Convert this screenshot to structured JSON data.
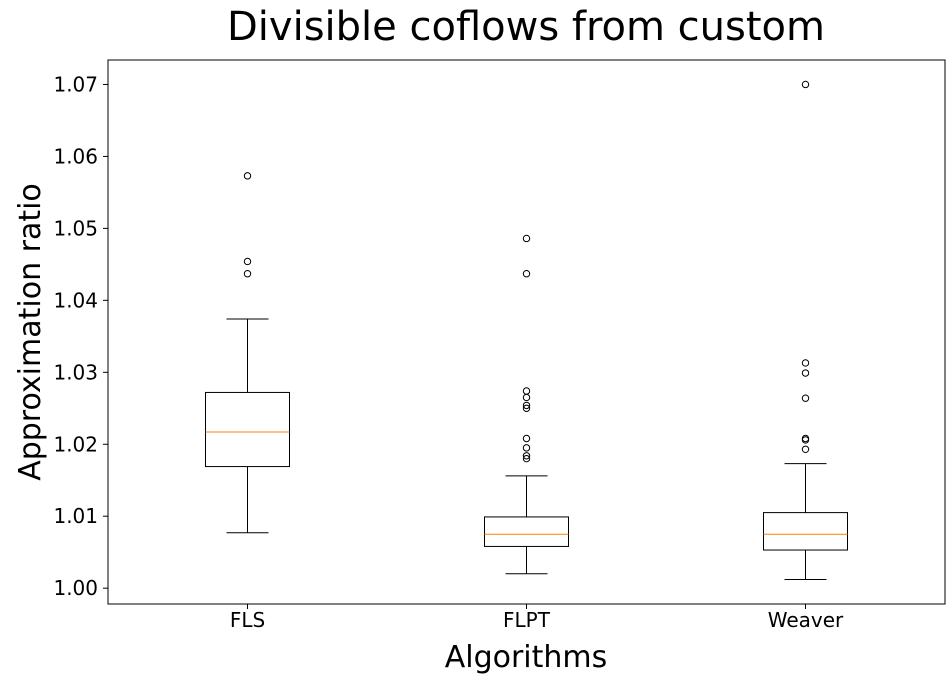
{
  "chart_data": {
    "type": "boxplot",
    "title": "Divisible coflows from custom",
    "xlabel": "Algorithms",
    "ylabel": "Approximation ratio",
    "ylim": [
      0.9978,
      1.0734
    ],
    "yticks": [
      "1.00",
      "1.01",
      "1.02",
      "1.03",
      "1.04",
      "1.05",
      "1.06",
      "1.07"
    ],
    "grid": false,
    "colors": {
      "box": "#000000",
      "median": "#ff7f0e",
      "background": "#ffffff"
    },
    "categories": [
      "FLS",
      "FLPT",
      "Weaver"
    ],
    "series": [
      {
        "category": "FLS",
        "whisker_low": 1.0077,
        "q1": 1.0169,
        "median": 1.0217,
        "q3": 1.0272,
        "whisker_high": 1.0374,
        "outliers": [
          1.0573,
          1.0454,
          1.0437
        ]
      },
      {
        "category": "FLPT",
        "whisker_low": 1.002,
        "q1": 1.0058,
        "median": 1.0075,
        "q3": 1.0099,
        "whisker_high": 1.0156,
        "outliers": [
          1.0486,
          1.0437,
          1.0274,
          1.0265,
          1.0254,
          1.025,
          1.0208,
          1.0195,
          1.0184,
          1.018
        ]
      },
      {
        "category": "Weaver",
        "whisker_low": 1.0012,
        "q1": 1.0053,
        "median": 1.0075,
        "q3": 1.0105,
        "whisker_high": 1.0173,
        "outliers": [
          1.07,
          1.0313,
          1.0299,
          1.0264,
          1.0208,
          1.0206,
          1.0193
        ]
      }
    ]
  }
}
